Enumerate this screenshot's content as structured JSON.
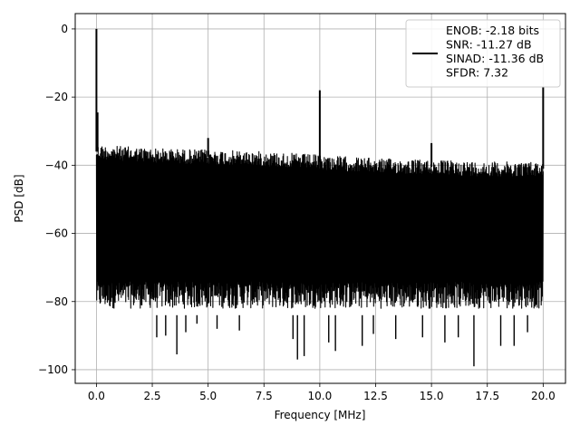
{
  "chart_data": {
    "type": "line",
    "title": "",
    "xlabel": "Frequency [MHz]",
    "ylabel": "PSD [dB]",
    "xlim": [
      -0.95,
      21.0
    ],
    "ylim": [
      -104,
      4.5
    ],
    "xticks": [
      0.0,
      2.5,
      5.0,
      7.5,
      10.0,
      12.5,
      15.0,
      17.5,
      20.0
    ],
    "xtick_labels": [
      "0.0",
      "2.5",
      "5.0",
      "7.5",
      "10.0",
      "12.5",
      "15.0",
      "17.5",
      "20.0"
    ],
    "yticks": [
      0,
      -20,
      -40,
      -60,
      -80,
      -100
    ],
    "ytick_labels": [
      "0",
      "−20",
      "−40",
      "−60",
      "−80",
      "−100"
    ],
    "grid": true,
    "legend_position": "top-right",
    "series": [
      {
        "name": "ENOB: -2.18 bits\nSNR: -11.27 dB\nSINAD: -11.36 dB\nSFDR: 7.32",
        "color": "#000000",
        "noise_floor": {
          "x_range": [
            0.0,
            20.0
          ],
          "upper_envelope": [
            [
              0.0,
              -34
            ],
            [
              2.5,
              -35
            ],
            [
              5.0,
              -35.5
            ],
            [
              7.5,
              -36
            ],
            [
              10.0,
              -37
            ],
            [
              12.5,
              -38
            ],
            [
              15.0,
              -38.5
            ],
            [
              17.5,
              -39
            ],
            [
              20.0,
              -39
            ]
          ],
          "lower_typical": -78
        },
        "peaks": [
          {
            "x": 0.0,
            "y": 0
          },
          {
            "x": 0.05,
            "y": -24.5
          },
          {
            "x": 5.0,
            "y": -32
          },
          {
            "x": 10.0,
            "y": -18
          },
          {
            "x": 15.0,
            "y": -33.5
          },
          {
            "x": 20.0,
            "y": -17
          }
        ],
        "dips": [
          {
            "x": 2.7,
            "y": -90.5
          },
          {
            "x": 3.1,
            "y": -90
          },
          {
            "x": 3.6,
            "y": -95.5
          },
          {
            "x": 4.0,
            "y": -89
          },
          {
            "x": 4.5,
            "y": -86.5
          },
          {
            "x": 5.4,
            "y": -88
          },
          {
            "x": 6.4,
            "y": -88.5
          },
          {
            "x": 8.8,
            "y": -91
          },
          {
            "x": 9.0,
            "y": -97
          },
          {
            "x": 9.3,
            "y": -96
          },
          {
            "x": 10.4,
            "y": -92
          },
          {
            "x": 10.7,
            "y": -94.5
          },
          {
            "x": 11.9,
            "y": -93
          },
          {
            "x": 12.4,
            "y": -89.5
          },
          {
            "x": 13.4,
            "y": -91
          },
          {
            "x": 14.6,
            "y": -90.5
          },
          {
            "x": 15.6,
            "y": -92
          },
          {
            "x": 16.2,
            "y": -90.5
          },
          {
            "x": 16.9,
            "y": -99
          },
          {
            "x": 18.1,
            "y": -93
          },
          {
            "x": 18.7,
            "y": -93
          },
          {
            "x": 19.3,
            "y": -89
          }
        ]
      }
    ]
  }
}
